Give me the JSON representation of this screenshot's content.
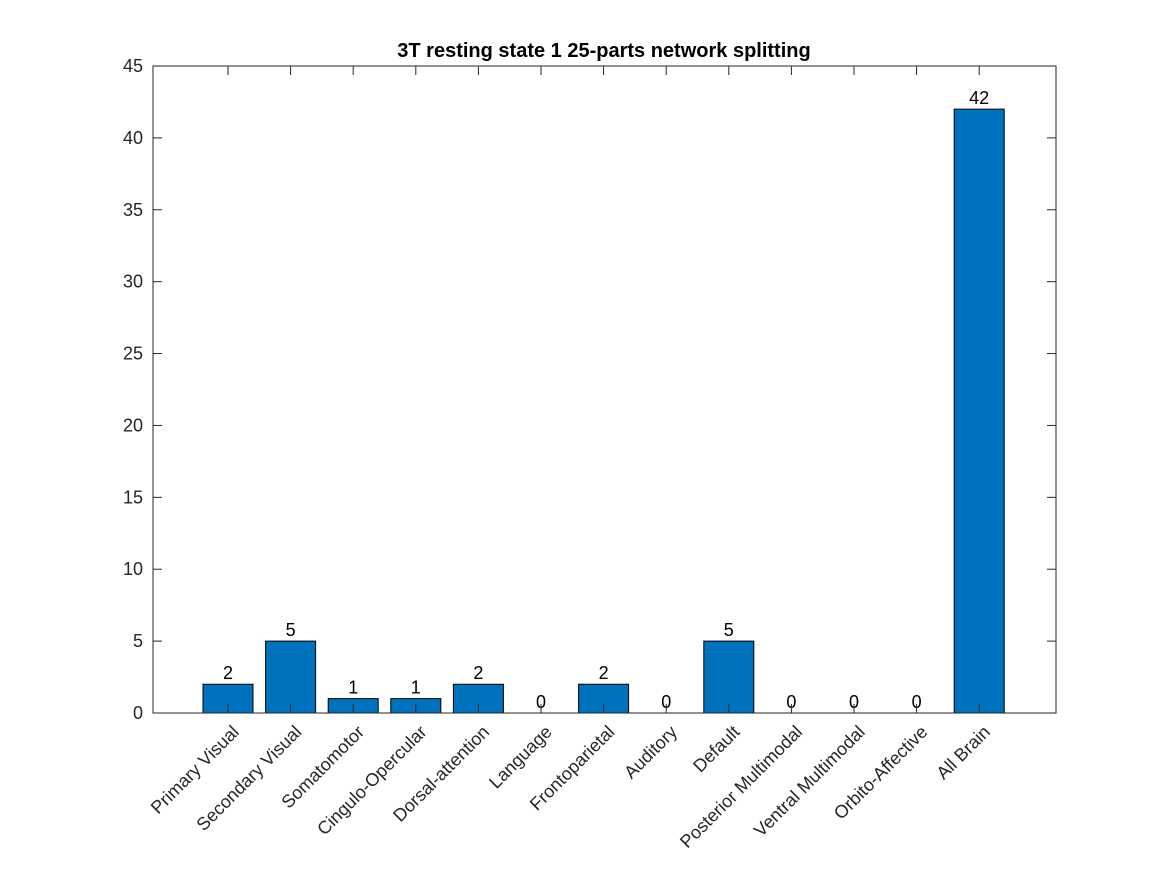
{
  "chart_data": {
    "type": "bar",
    "title": "3T resting state 1 25-parts network splitting",
    "xlabel": "",
    "ylabel": "",
    "categories": [
      "Primary Visual",
      "Secondary Visual",
      "Somatomotor",
      "Cingulo-Opercular",
      "Dorsal-attention",
      "Language",
      "Frontoparietal",
      "Auditory",
      "Default",
      "Posterior Multimodal",
      "Ventral Multimodal",
      "Orbito-Affective",
      "All Brain"
    ],
    "values": [
      2,
      5,
      1,
      1,
      2,
      0,
      2,
      0,
      5,
      0,
      0,
      0,
      42
    ],
    "ylim": [
      0,
      45
    ],
    "yticks": [
      0,
      5,
      10,
      15,
      20,
      25,
      30,
      35,
      40,
      45
    ],
    "grid": false,
    "legend": "none",
    "bar_color": "#0072BD",
    "data_labels": true
  }
}
